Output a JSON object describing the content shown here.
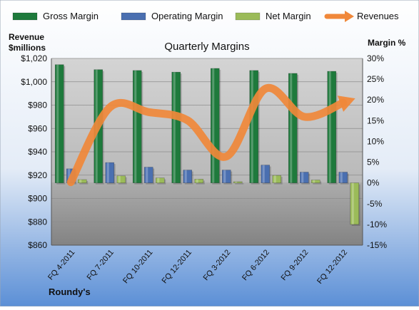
{
  "chart_data": {
    "type": "bar",
    "title": "Quarterly Margins",
    "footer": "Roundy's",
    "categories": [
      "FQ 4-2011",
      "FQ 7-2011",
      "FQ 10-2011",
      "FQ 12-2011",
      "FQ 3-2012",
      "FQ 6-2012",
      "FQ 9-2012",
      "FQ 12-2012"
    ],
    "left_axis": {
      "label_line1": "Revenue",
      "label_line2": "$millions",
      "min": 860,
      "max": 1020,
      "step": 20,
      "ticks": [
        "$860",
        "$880",
        "$900",
        "$920",
        "$940",
        "$960",
        "$980",
        "$1,000",
        "$1,020"
      ]
    },
    "right_axis": {
      "label": "Margin %",
      "min": -15,
      "max": 30,
      "step": 5,
      "ticks": [
        "-15%",
        "-10%",
        "-5%",
        "0%",
        "5%",
        "10%",
        "15%",
        "20%",
        "25%",
        "30%"
      ]
    },
    "series": [
      {
        "name": "Gross Margin",
        "axis": "right",
        "kind": "bar",
        "color": "#1e7a3c",
        "values": [
          28.5,
          27.3,
          27.1,
          26.7,
          27.6,
          27.1,
          26.4,
          26.9
        ]
      },
      {
        "name": "Operating Margin",
        "axis": "right",
        "kind": "bar",
        "color": "#4a6fb0",
        "values": [
          3.4,
          4.9,
          3.8,
          3.1,
          3.1,
          4.3,
          2.6,
          2.6
        ]
      },
      {
        "name": "Net Margin",
        "axis": "right",
        "kind": "bar",
        "color": "#9bbb59",
        "values": [
          0.8,
          1.7,
          1.2,
          0.9,
          0.3,
          1.8,
          0.7,
          -10.0
        ]
      },
      {
        "name": "Revenues",
        "axis": "left",
        "kind": "line",
        "color": "#f0883a",
        "values": [
          914,
          978,
          974,
          967,
          936,
          994,
          970,
          982
        ]
      }
    ],
    "legend_position": "top",
    "grid": true
  }
}
